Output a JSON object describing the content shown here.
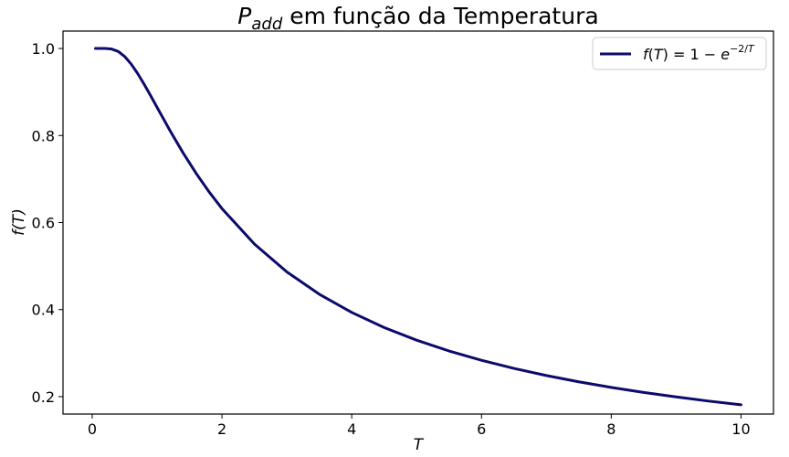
{
  "chart_data": {
    "type": "line",
    "title": {
      "main": "P",
      "sub": "add",
      "rest": " em função da Temperatura"
    },
    "xlabel": "T",
    "ylabel": "f(T)",
    "xlim": [
      -0.45,
      10.5
    ],
    "ylim": [
      0.16,
      1.04
    ],
    "xticks": [
      0,
      2,
      4,
      6,
      8,
      10
    ],
    "xtick_labels": [
      "0",
      "2",
      "4",
      "6",
      "8",
      "10"
    ],
    "yticks": [
      0.2,
      0.4,
      0.6,
      0.8,
      1.0
    ],
    "ytick_labels": [
      "0.2",
      "0.4",
      "0.6",
      "0.8",
      "1.0"
    ],
    "grid": false,
    "legend_position": "top-right",
    "series": [
      {
        "name": "f(T) = 1 − e^(−2/T)",
        "legend_parts": {
          "f": "f",
          "T1": "T",
          "eq": ") = 1 − ",
          "e": "e",
          "exp": "−2/",
          "T2": "T"
        },
        "color": "#0b0b6b",
        "x": [
          0.05,
          0.1,
          0.2,
          0.3,
          0.4,
          0.5,
          0.6,
          0.7,
          0.8,
          0.9,
          1.0,
          1.2,
          1.4,
          1.6,
          1.8,
          2.0,
          2.5,
          3.0,
          3.5,
          4.0,
          4.5,
          5.0,
          5.5,
          6.0,
          6.5,
          7.0,
          7.5,
          8.0,
          8.5,
          9.0,
          9.5,
          10.0
        ],
        "y": [
          1.0,
          1.0,
          1.0,
          0.9987,
          0.9933,
          0.9817,
          0.9643,
          0.9426,
          0.9179,
          0.8916,
          0.8647,
          0.8111,
          0.7603,
          0.7135,
          0.6708,
          0.6321,
          0.5507,
          0.4866,
          0.4353,
          0.3935,
          0.3588,
          0.3297,
          0.3049,
          0.2835,
          0.2649,
          0.2485,
          0.2341,
          0.2212,
          0.2096,
          0.1993,
          0.1898,
          0.1813
        ]
      }
    ]
  }
}
